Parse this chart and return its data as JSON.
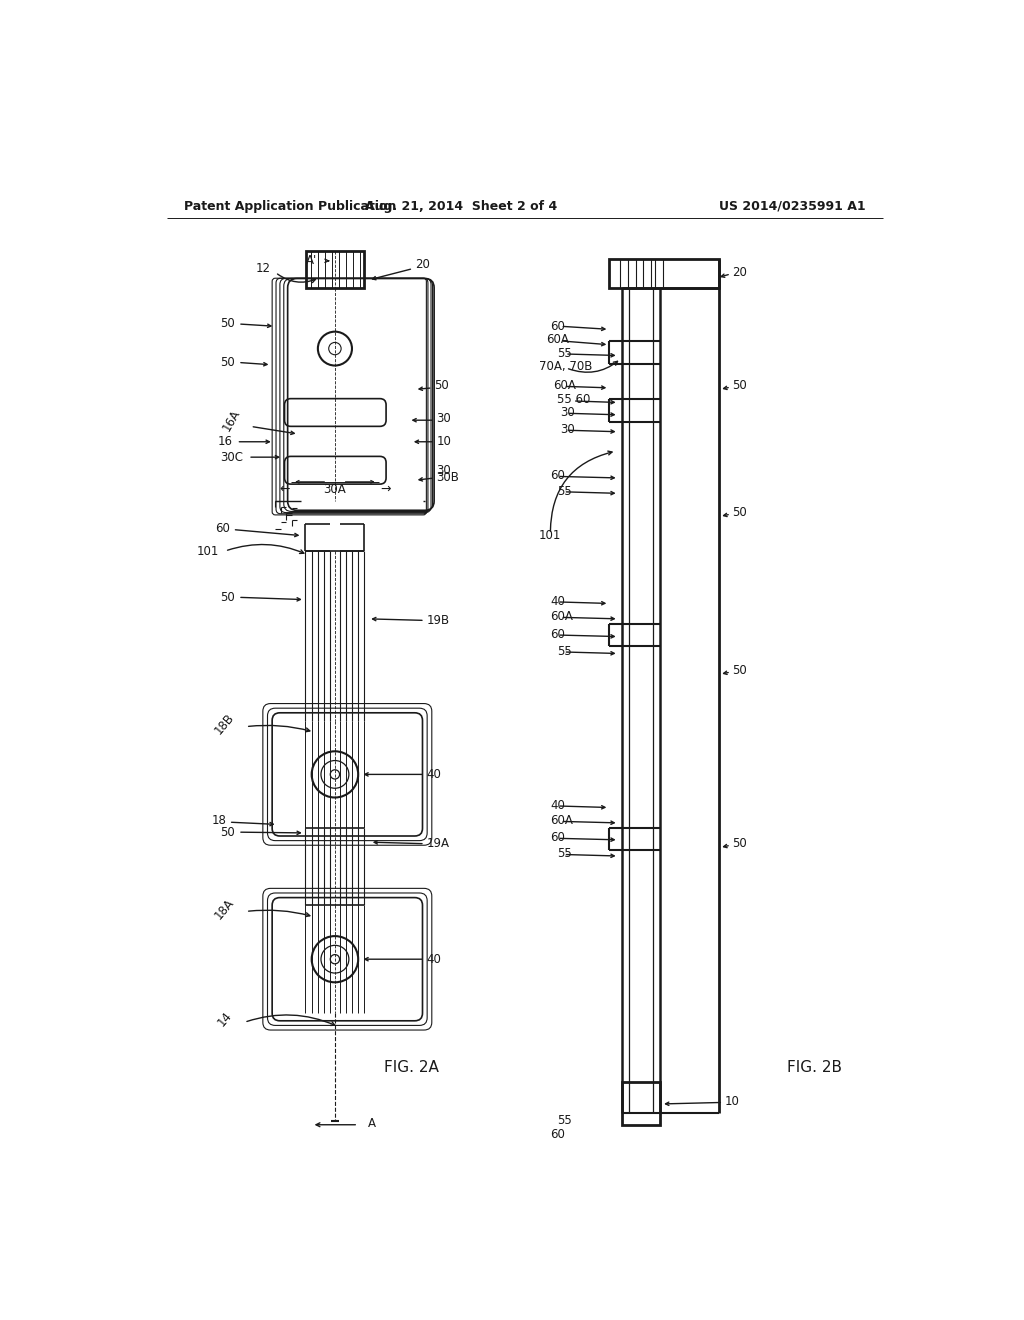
{
  "bg_color": "#ffffff",
  "line_color": "#1a1a1a",
  "header_text_left": "Patent Application Publication",
  "header_text_mid": "Aug. 21, 2014  Sheet 2 of 4",
  "header_text_right": "US 2014/0235991 A1",
  "fig2a_label": "FIG. 2A",
  "fig2b_label": "FIG. 2B"
}
